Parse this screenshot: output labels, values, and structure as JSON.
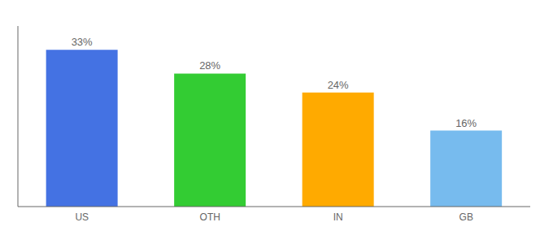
{
  "chart_data": {
    "type": "bar",
    "categories": [
      "US",
      "OTH",
      "IN",
      "GB"
    ],
    "values": [
      33,
      28,
      24,
      16
    ],
    "value_labels": [
      "33%",
      "28%",
      "24%",
      "16%"
    ],
    "colors": [
      "#4472e3",
      "#33cc33",
      "#ffaa00",
      "#77bbee"
    ],
    "ylim": [
      0,
      38
    ],
    "data_labels": true,
    "tick_labels": "x",
    "grid": false
  }
}
